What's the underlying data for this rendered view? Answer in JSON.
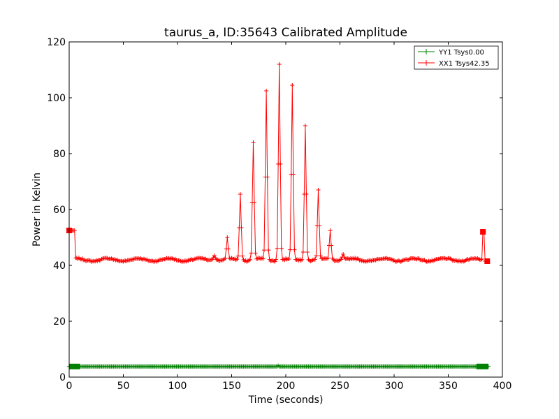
{
  "chart_data": {
    "type": "line",
    "title": "taurus_a, ID:35643 Calibrated Amplitude",
    "xlabel": "Time (seconds)",
    "ylabel": "Power in Kelvin",
    "xlim": [
      0,
      400
    ],
    "ylim": [
      0,
      120
    ],
    "xticks": [
      0,
      50,
      100,
      150,
      200,
      250,
      300,
      350,
      400
    ],
    "yticks": [
      0,
      20,
      40,
      60,
      80,
      100,
      120
    ],
    "grid": false,
    "legend_position": "top-right",
    "series": [
      {
        "name": "YY1 Tsys0.00",
        "color": "#008000",
        "sample_interval": 1,
        "x_start": 0,
        "x_end": 387,
        "baseline": 3.8,
        "points": [
          [
            0,
            3.8
          ],
          [
            193,
            4.1
          ],
          [
            387,
            3.8
          ]
        ]
      },
      {
        "name": "XX1 Tsys42.35",
        "color": "#ff0000",
        "sample_interval": 1,
        "x_start": 0,
        "x_end": 386,
        "baseline": 42.0,
        "points": [
          [
            0,
            52.5
          ],
          [
            5,
            52.5
          ],
          [
            6,
            42.0
          ],
          [
            382,
            52.0
          ],
          [
            384,
            41.5
          ],
          [
            386,
            41.5
          ]
        ],
        "peaks": [
          {
            "x": 134,
            "y": 43.5
          },
          {
            "x": 146,
            "y": 50.0
          },
          {
            "x": 158,
            "y": 65.5
          },
          {
            "x": 170,
            "y": 84.0
          },
          {
            "x": 182,
            "y": 102.5
          },
          {
            "x": 194,
            "y": 112.0
          },
          {
            "x": 206,
            "y": 104.5
          },
          {
            "x": 218,
            "y": 90.0
          },
          {
            "x": 230,
            "y": 67.0
          },
          {
            "x": 241,
            "y": 52.5
          },
          {
            "x": 253,
            "y": 44.0
          }
        ]
      }
    ]
  }
}
